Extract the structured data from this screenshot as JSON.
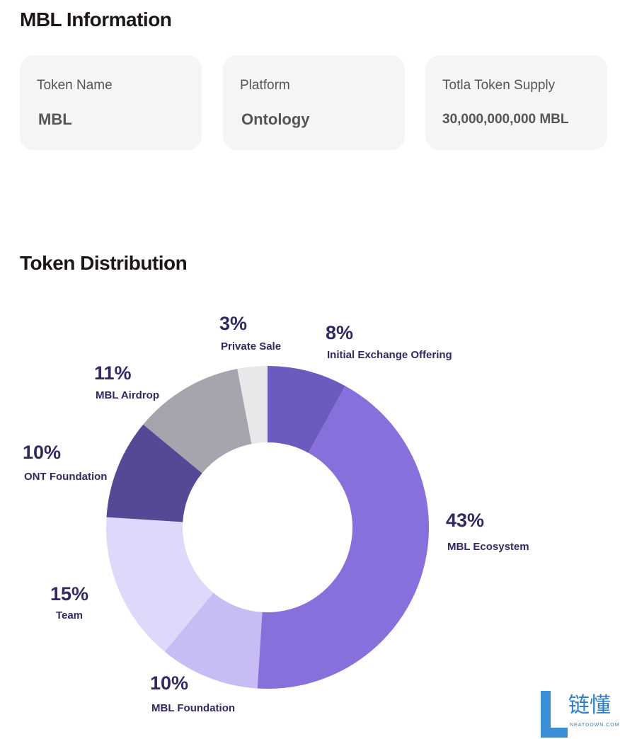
{
  "info": {
    "title": "MBL Information",
    "cards": [
      {
        "label": "Token Name",
        "value": "MBL"
      },
      {
        "label": "Platform",
        "value": "Ontology"
      },
      {
        "label": "Totla Token Supply",
        "value": "30,000,000,000 MBL"
      }
    ]
  },
  "chart_data": {
    "type": "pie",
    "title": "Token Distribution",
    "categories": [
      "Initial Exchange Offering",
      "MBL Ecosystem",
      "MBL Foundation",
      "Team",
      "ONT Foundation",
      "MBL Airdrop",
      "Private Sale"
    ],
    "values": [
      8,
      43,
      10,
      15,
      10,
      11,
      3
    ],
    "value_labels": [
      "8%",
      "43%",
      "10%",
      "15%",
      "10%",
      "11%",
      "3%"
    ],
    "colors": [
      "#6c5bbf",
      "#8870dc",
      "#c8bcf5",
      "#ded8fb",
      "#564894",
      "#a6a5ad",
      "#e8e8ea"
    ],
    "donut": true
  },
  "watermark": {
    "text": "链懂",
    "sub": "NEATDOWN.COM"
  }
}
